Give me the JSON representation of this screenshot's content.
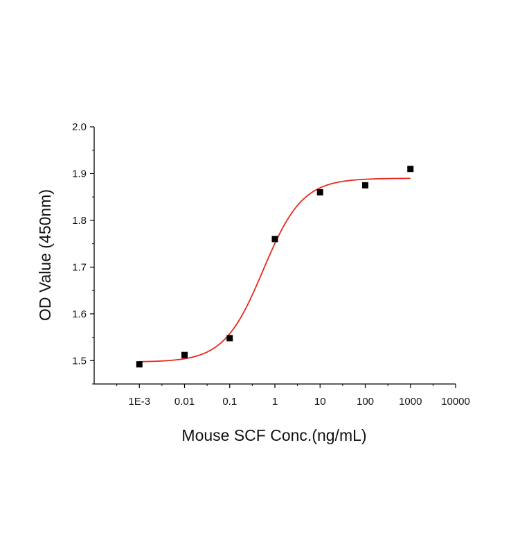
{
  "chart_data": {
    "type": "scatter",
    "title": "",
    "xlabel": "Mouse SCF Conc.(ng/mL)",
    "ylabel": "OD Value (450nm)",
    "x_scale": "log",
    "xlim": [
      0.0001,
      10000
    ],
    "ylim": [
      1.45,
      2.0
    ],
    "x_ticks": [
      {
        "value": 0.001,
        "label": "1E-3"
      },
      {
        "value": 0.01,
        "label": "0.01"
      },
      {
        "value": 0.1,
        "label": "0.1"
      },
      {
        "value": 1,
        "label": "1"
      },
      {
        "value": 10,
        "label": "10"
      },
      {
        "value": 100,
        "label": "100"
      },
      {
        "value": 1000,
        "label": "1000"
      },
      {
        "value": 10000,
        "label": "10000"
      }
    ],
    "y_ticks": [
      {
        "value": 1.5,
        "label": "1.5"
      },
      {
        "value": 1.6,
        "label": "1.6"
      },
      {
        "value": 1.7,
        "label": "1.7"
      },
      {
        "value": 1.8,
        "label": "1.8"
      },
      {
        "value": 1.9,
        "label": "1.9"
      },
      {
        "value": 2.0,
        "label": "2.0"
      }
    ],
    "grid": false,
    "legend": "none",
    "series": [
      {
        "kind": "points",
        "marker": "square",
        "color": "#000000",
        "x": [
          0.001,
          0.01,
          0.1,
          1,
          10,
          100,
          1000
        ],
        "y": [
          1.492,
          1.512,
          1.548,
          1.76,
          1.86,
          1.875,
          1.91
        ]
      },
      {
        "kind": "fit-curve",
        "model": "four-parameter-logistic",
        "color": "#e8281e",
        "params": {
          "bottom": 1.497,
          "top": 1.89,
          "ec50": 0.55,
          "hill": 1.0
        },
        "x_range": [
          0.001,
          1000
        ]
      }
    ]
  }
}
